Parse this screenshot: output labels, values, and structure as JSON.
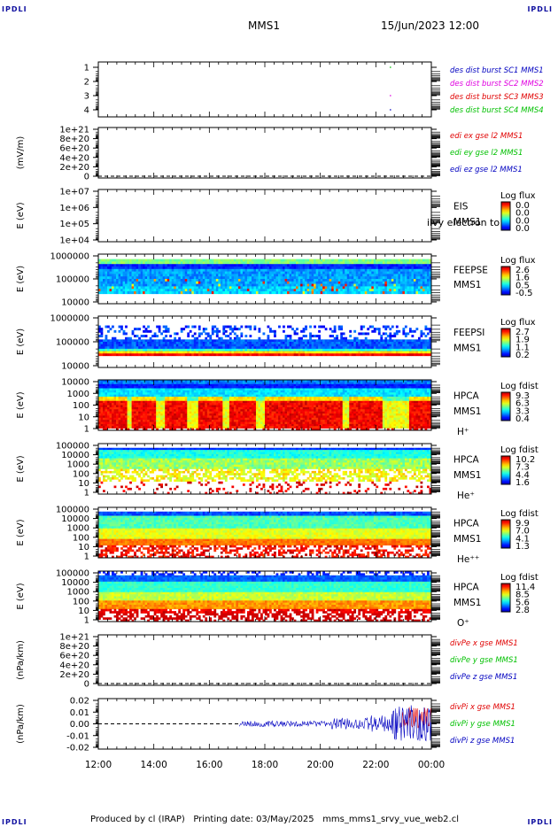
{
  "corner_label": "IPDLI",
  "header": {
    "spacecraft": "MMS1",
    "datetime": "15/Jun/2023 12:00"
  },
  "footer": "Produced by cl (IRAP)   Printing date: 03/May/2025   mms_mms1_srvy_vue_web2.cl",
  "x_ticks": [
    "12:00",
    "14:00",
    "16:00",
    "18:00",
    "20:00",
    "22:00",
    "00:00"
  ],
  "chart_data": [
    {
      "id": "burst",
      "type": "line",
      "yticks": [
        "1",
        "2",
        "3",
        "4"
      ],
      "legend": [
        {
          "text": "des dist burst SC1 MMS1",
          "color": "#0000c0"
        },
        {
          "text": "des dist burst SC2 MMS2",
          "color": "#e000e0"
        },
        {
          "text": "des dist burst SC3 MMS3",
          "color": "#e00000"
        },
        {
          "text": "des dist burst SC4 MMS4",
          "color": "#00c000"
        }
      ],
      "segments": [
        {
          "sc": 1,
          "x": [
            "22:30",
            "22:33"
          ],
          "color": "#0000c0"
        },
        {
          "sc": 2,
          "x": [
            "22:30",
            "22:33"
          ],
          "color": "#e000e0"
        },
        {
          "sc": 4,
          "x": [
            "22:30",
            "22:33"
          ],
          "color": "#00c000"
        }
      ]
    },
    {
      "id": "edi",
      "type": "line",
      "ylabel": "(mV/m)",
      "yticks": [
        "1e+21",
        "8e+20",
        "6e+20",
        "4e+20",
        "2e+20",
        "0"
      ],
      "legend": [
        {
          "text": "edi ex gse l2 MMS1",
          "color": "#e00000"
        },
        {
          "text": "edi ey gse l2 MMS1",
          "color": "#00c000"
        },
        {
          "text": "edi ez gse l2 MMS1",
          "color": "#0000c0"
        }
      ]
    },
    {
      "id": "eis",
      "type": "heatmap",
      "ylabel": "E (eV)",
      "yticks": [
        "1e+07",
        "1e+06",
        "1e+05",
        "1e+04"
      ],
      "labels": [
        "EIS",
        "MMS1"
      ],
      "overlay": "ilvy electron to",
      "colorbar": {
        "title": "Log flux",
        "ticks": [
          "0.0",
          "0.0",
          "0.0",
          "0.0"
        ]
      }
    },
    {
      "id": "feepse",
      "type": "heatmap",
      "ylabel": "E (eV)",
      "yticks": [
        "1000000",
        "100000",
        "10000"
      ],
      "labels": [
        "FEEPSE",
        "MMS1"
      ],
      "colorbar": {
        "title": "Log flux",
        "ticks": [
          "2.6",
          "1.6",
          "0.5",
          "-0.5"
        ]
      }
    },
    {
      "id": "feepsi",
      "type": "heatmap",
      "ylabel": "E (eV)",
      "yticks": [
        "1000000",
        "100000",
        "10000"
      ],
      "labels": [
        "FEEPSI",
        "MMS1"
      ],
      "colorbar": {
        "title": "Log flux",
        "ticks": [
          "2.7",
          "1.9",
          "1.1",
          "0.2"
        ]
      }
    },
    {
      "id": "hpca_h",
      "type": "heatmap",
      "ylabel": "E (eV)",
      "yticks": [
        "10000",
        "1000",
        "100",
        "10",
        "1"
      ],
      "labels": [
        "HPCA",
        "MMS1",
        "H⁺"
      ],
      "colorbar": {
        "title": "Log fdist",
        "ticks": [
          "9.3",
          "6.3",
          "3.3",
          "0.4"
        ]
      }
    },
    {
      "id": "hpca_he",
      "type": "heatmap",
      "ylabel": "E (eV)",
      "yticks": [
        "100000",
        "10000",
        "1000",
        "100",
        "10",
        "1"
      ],
      "labels": [
        "HPCA",
        "MMS1",
        "He⁺"
      ],
      "colorbar": {
        "title": "Log fdist",
        "ticks": [
          "10.2",
          "7.3",
          "4.4",
          "1.6"
        ]
      }
    },
    {
      "id": "hpca_hepp",
      "type": "heatmap",
      "ylabel": "E (eV)",
      "yticks": [
        "100000",
        "10000",
        "1000",
        "100",
        "10",
        "1"
      ],
      "labels": [
        "HPCA",
        "MMS1",
        "He⁺⁺"
      ],
      "colorbar": {
        "title": "Log fdist",
        "ticks": [
          "9.9",
          "7.0",
          "4.1",
          "1.3"
        ]
      }
    },
    {
      "id": "hpca_o",
      "type": "heatmap",
      "ylabel": "E (eV)",
      "yticks": [
        "100000",
        "10000",
        "1000",
        "100",
        "10",
        "1"
      ],
      "labels": [
        "HPCA",
        "MMS1",
        "O⁺"
      ],
      "colorbar": {
        "title": "Log fdist",
        "ticks": [
          "11.4",
          "8.5",
          "5.6",
          "2.8"
        ]
      }
    },
    {
      "id": "divpe",
      "type": "line",
      "ylabel": "(nPa/km)",
      "yticks": [
        "1e+21",
        "8e+20",
        "6e+20",
        "4e+20",
        "2e+20",
        "0"
      ],
      "legend": [
        {
          "text": "divPe x gse MMS1",
          "color": "#e00000"
        },
        {
          "text": "divPe y gse MMS1",
          "color": "#00c000"
        },
        {
          "text": "divPe z gse MMS1",
          "color": "#0000c0"
        }
      ]
    },
    {
      "id": "divpi",
      "type": "line",
      "ylabel": "(nPa/km)",
      "yticks": [
        "0.02",
        "0.01",
        "0.00",
        "-0.01",
        "-0.02"
      ],
      "ylim": [
        -0.025,
        0.025
      ],
      "legend": [
        {
          "text": "divPi x gse MMS1",
          "color": "#e00000"
        },
        {
          "text": "divPi y gse MMS1",
          "color": "#00c000"
        },
        {
          "text": "divPi z gse MMS1",
          "color": "#0000c0"
        }
      ],
      "data_start": "17:05"
    }
  ]
}
